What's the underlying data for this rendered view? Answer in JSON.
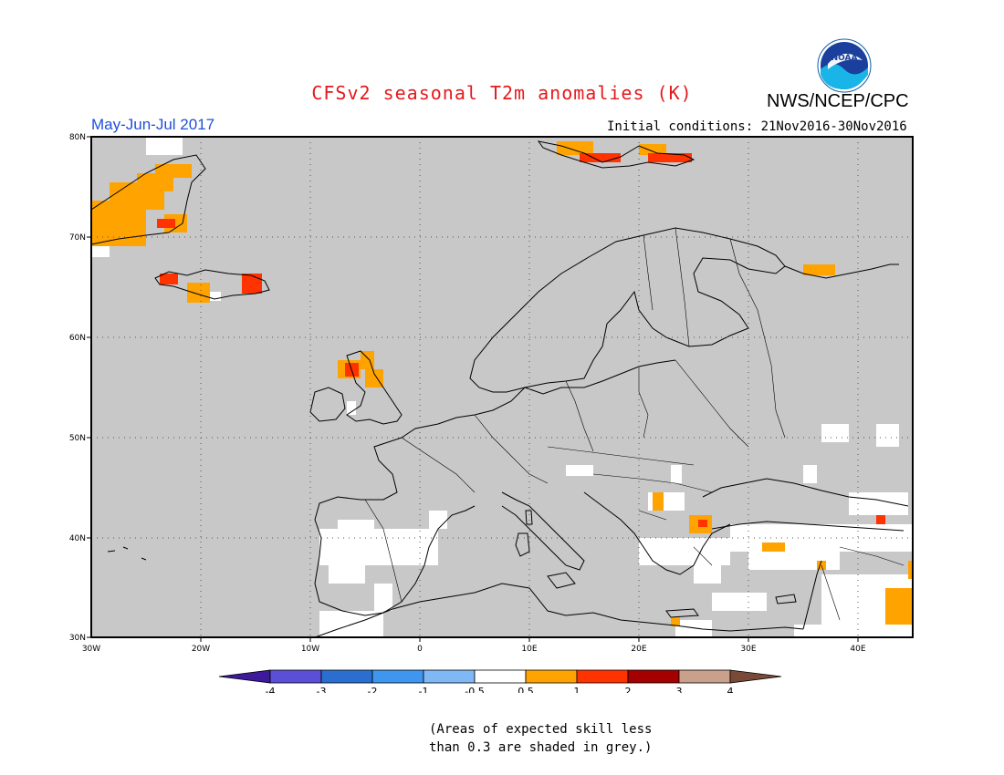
{
  "header": {
    "title": "CFSv2 seasonal T2m anomalies (K)",
    "agency": "NWS/NCEP/CPC",
    "logo_text": "NOAA",
    "period": "May-Jun-Jul 2017",
    "initial_conditions": "Initial conditions: 21Nov2016-30Nov2016"
  },
  "map": {
    "region": "Europe",
    "background_color": "#c8c8c8",
    "lat_ticks": [
      "80N",
      "70N",
      "60N",
      "50N",
      "40N",
      "30N"
    ],
    "lon_ticks": [
      "30W",
      "20W",
      "10W",
      "0",
      "10E",
      "20E",
      "30E",
      "40E"
    ],
    "gridlines": "dotted"
  },
  "legend": {
    "colors": [
      "#3d1a9c",
      "#5a4fd6",
      "#2a6fd0",
      "#3e96ee",
      "#7fb8f5",
      "#ffffff",
      "#ffa300",
      "#ff3300",
      "#a50000",
      "#c8a08c",
      "#7a4a38"
    ],
    "labels": [
      "-4",
      "-3",
      "-2",
      "-1",
      "-0.5",
      "0.5",
      "1",
      "2",
      "3",
      "4"
    ]
  },
  "footnote": {
    "line1": "(Areas of expected skill less",
    "line2": "than 0.3 are shaded in grey.)"
  }
}
